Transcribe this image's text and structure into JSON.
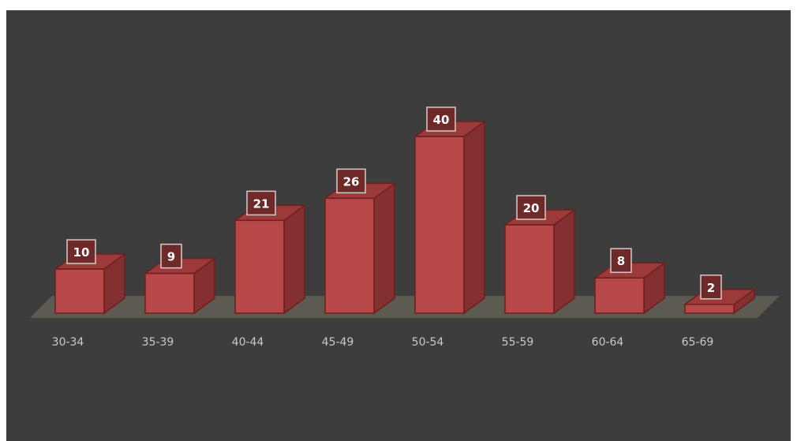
{
  "colors": {
    "background": "#3d3d3d",
    "floor": "#5c5a51",
    "bar_front": "#b84848",
    "bar_side": "#853030",
    "bar_top": "#9c3a3a",
    "bar_edge": "#6b1f1f",
    "label_box": "#6e2929",
    "label_border": "#d9c9c9",
    "label_text": "#ffffff",
    "tick_text": "#c9c9c9"
  },
  "chart_data": {
    "type": "bar",
    "style": "3d-column",
    "categories": [
      "30-34",
      "35-39",
      "40-44",
      "45-49",
      "50-54",
      "55-59",
      "60-64",
      "65-69"
    ],
    "values": [
      10,
      9,
      21,
      26,
      40,
      20,
      8,
      2
    ],
    "data_labels": [
      "10",
      "9",
      "21",
      "26",
      "40",
      "20",
      "8",
      "2"
    ],
    "title": "",
    "xlabel": "",
    "ylabel": "",
    "ylim": [
      0,
      40
    ],
    "grid": false,
    "legend": "none",
    "y_axis_visible": false
  }
}
